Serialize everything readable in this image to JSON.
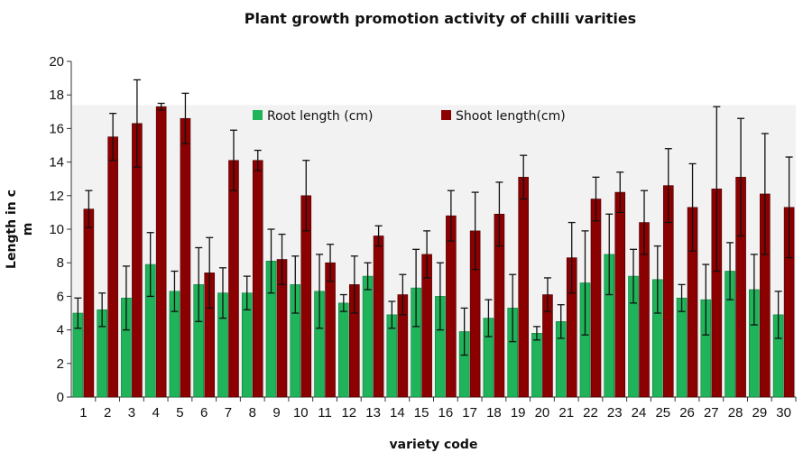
{
  "chart_data": {
    "type": "bar",
    "title": "Plant growth promotion activity of chilli varities",
    "xlabel": "variety code",
    "ylabel": "Length in c\nm",
    "ylim": [
      0,
      20
    ],
    "yticks": [
      0,
      2,
      4,
      6,
      8,
      10,
      12,
      14,
      16,
      18,
      20
    ],
    "categories": [
      "1",
      "2",
      "3",
      "4",
      "5",
      "6",
      "7",
      "8",
      "9",
      "10",
      "11",
      "12",
      "13",
      "14",
      "15",
      "16",
      "17",
      "18",
      "19",
      "20",
      "21",
      "22",
      "23",
      "24",
      "25",
      "26",
      "27",
      "28",
      "29",
      "30"
    ],
    "legend_position": "top-center",
    "series": [
      {
        "name": "Root length (cm)",
        "color": "#1fb35a",
        "values": [
          5.0,
          5.2,
          5.9,
          7.9,
          6.3,
          6.7,
          6.2,
          6.2,
          8.1,
          6.7,
          6.3,
          5.6,
          7.2,
          4.9,
          6.5,
          6.0,
          3.9,
          4.7,
          5.3,
          3.8,
          4.5,
          6.8,
          8.5,
          7.2,
          7.0,
          5.9,
          5.8,
          7.5,
          6.4,
          4.9
        ],
        "errors": [
          0.9,
          1.0,
          1.9,
          1.9,
          1.2,
          2.2,
          1.5,
          1.0,
          1.9,
          1.7,
          2.2,
          0.5,
          0.8,
          0.8,
          2.3,
          2.0,
          1.4,
          1.1,
          2.0,
          0.4,
          1.0,
          3.1,
          2.4,
          1.6,
          2.0,
          0.8,
          2.1,
          1.7,
          2.1,
          1.4
        ]
      },
      {
        "name": "Shoot length(cm)",
        "color": "#8b0000",
        "values": [
          11.2,
          15.5,
          16.3,
          17.3,
          16.6,
          7.4,
          14.1,
          14.1,
          8.2,
          12.0,
          8.0,
          6.7,
          9.6,
          6.1,
          8.5,
          10.8,
          9.9,
          10.9,
          13.1,
          6.1,
          8.3,
          11.8,
          12.2,
          10.4,
          12.6,
          11.3,
          12.4,
          13.1,
          12.1,
          11.3
        ],
        "errors": [
          1.1,
          1.4,
          2.6,
          0.2,
          1.5,
          2.1,
          1.8,
          0.6,
          1.5,
          2.1,
          1.1,
          1.7,
          0.6,
          1.2,
          1.4,
          1.5,
          2.3,
          1.9,
          1.3,
          1.0,
          2.1,
          1.3,
          1.2,
          1.9,
          2.2,
          2.6,
          4.9,
          3.5,
          3.6,
          3.0
        ]
      }
    ]
  }
}
